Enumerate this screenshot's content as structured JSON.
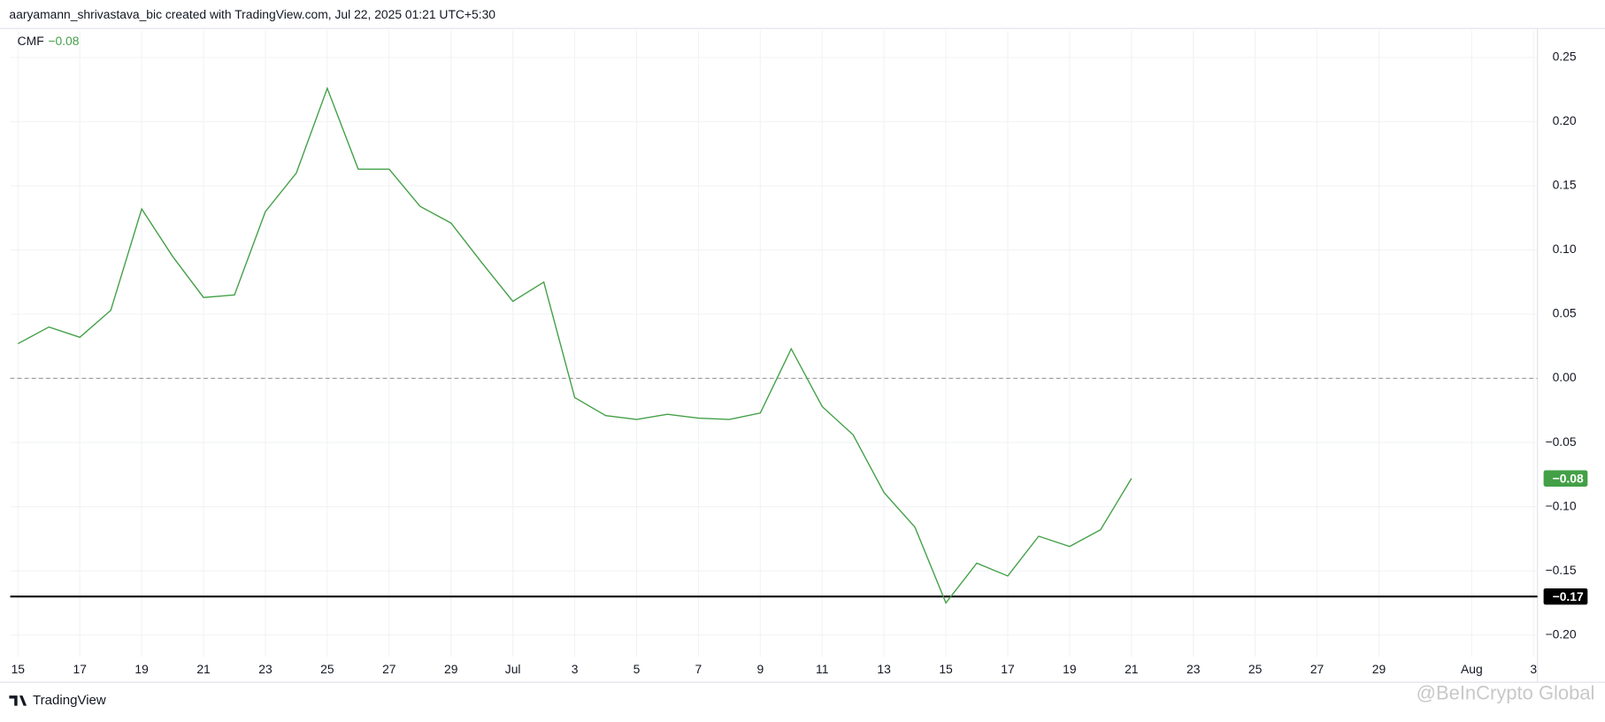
{
  "header": "aaryamann_shrivastava_bic created with TradingView.com, Jul 22, 2025 01:21 UTC+5:30",
  "footer_logo": "TradingView",
  "watermark": "@BeInCrypto Global",
  "chart_data": {
    "type": "line",
    "x": [
      "2025-06-15",
      "2025-06-16",
      "2025-06-17",
      "2025-06-18",
      "2025-06-19",
      "2025-06-20",
      "2025-06-21",
      "2025-06-22",
      "2025-06-23",
      "2025-06-24",
      "2025-06-25",
      "2025-06-26",
      "2025-06-27",
      "2025-06-28",
      "2025-06-29",
      "2025-06-30",
      "2025-07-01",
      "2025-07-02",
      "2025-07-03",
      "2025-07-04",
      "2025-07-05",
      "2025-07-06",
      "2025-07-07",
      "2025-07-08",
      "2025-07-09",
      "2025-07-10",
      "2025-07-11",
      "2025-07-12",
      "2025-07-13",
      "2025-07-14",
      "2025-07-15",
      "2025-07-16",
      "2025-07-17",
      "2025-07-18",
      "2025-07-19",
      "2025-07-20",
      "2025-07-21"
    ],
    "series": [
      {
        "name": "CMF",
        "color": "#43a047",
        "values": [
          0.027,
          0.04,
          0.032,
          0.053,
          0.132,
          0.095,
          0.063,
          0.065,
          0.13,
          0.16,
          0.226,
          0.163,
          0.163,
          0.134,
          0.121,
          0.09,
          0.06,
          0.075,
          -0.015,
          -0.029,
          -0.032,
          -0.028,
          -0.031,
          -0.032,
          -0.027,
          0.023,
          -0.022,
          -0.044,
          -0.089,
          -0.116,
          -0.175,
          -0.144,
          -0.154,
          -0.123,
          -0.131,
          -0.118,
          -0.078
        ],
        "last_label": "−0.08"
      }
    ],
    "xlim": [
      "2025-06-14T18:00:00Z",
      "2025-08-03T03:00:00Z"
    ],
    "xticks": [
      {
        "value": "2025-06-15",
        "label": "15"
      },
      {
        "value": "2025-06-17",
        "label": "17"
      },
      {
        "value": "2025-06-19",
        "label": "19"
      },
      {
        "value": "2025-06-21",
        "label": "21"
      },
      {
        "value": "2025-06-23",
        "label": "23"
      },
      {
        "value": "2025-06-25",
        "label": "25"
      },
      {
        "value": "2025-06-27",
        "label": "27"
      },
      {
        "value": "2025-06-29",
        "label": "29"
      },
      {
        "value": "2025-07-01",
        "label": "Jul"
      },
      {
        "value": "2025-07-03",
        "label": "3"
      },
      {
        "value": "2025-07-05",
        "label": "5"
      },
      {
        "value": "2025-07-07",
        "label": "7"
      },
      {
        "value": "2025-07-09",
        "label": "9"
      },
      {
        "value": "2025-07-11",
        "label": "11"
      },
      {
        "value": "2025-07-13",
        "label": "13"
      },
      {
        "value": "2025-07-15",
        "label": "15"
      },
      {
        "value": "2025-07-17",
        "label": "17"
      },
      {
        "value": "2025-07-19",
        "label": "19"
      },
      {
        "value": "2025-07-21",
        "label": "21"
      },
      {
        "value": "2025-07-23",
        "label": "23"
      },
      {
        "value": "2025-07-25",
        "label": "25"
      },
      {
        "value": "2025-07-27",
        "label": "27"
      },
      {
        "value": "2025-07-29",
        "label": "29"
      },
      {
        "value": "2025-08-01",
        "label": "Aug"
      },
      {
        "value": "2025-08-03",
        "label": "3"
      }
    ],
    "ylim": [
      -0.217,
      0.271
    ],
    "yticks": [
      {
        "value": 0.25,
        "label": "0.25"
      },
      {
        "value": 0.2,
        "label": "0.20"
      },
      {
        "value": 0.15,
        "label": "0.15"
      },
      {
        "value": 0.1,
        "label": "0.10"
      },
      {
        "value": 0.05,
        "label": "0.05"
      },
      {
        "value": 0,
        "label": "0.00"
      },
      {
        "value": -0.05,
        "label": "−0.05"
      },
      {
        "value": -0.1,
        "label": "−0.10"
      },
      {
        "value": -0.15,
        "label": "−0.15"
      },
      {
        "value": -0.2,
        "label": "−0.20"
      }
    ],
    "zero_line": {
      "value": 0,
      "color": "#999999"
    },
    "hline": {
      "value": -0.17,
      "label": "−0.17",
      "color": "#000000"
    },
    "grid": true
  }
}
